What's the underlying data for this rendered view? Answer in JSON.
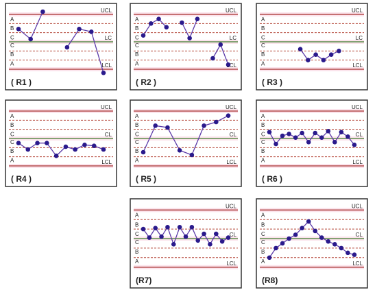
{
  "chart_data": [
    {
      "type": "line",
      "title": "( R1 )",
      "color": "#2a1a8c",
      "ylim": [
        -3.6,
        3.6
      ],
      "values": [
        1.4,
        0.3,
        3.3,
        null,
        -0.6,
        1.4,
        1.1,
        -3.4
      ],
      "yticks": [
        {
          "value": 3,
          "label": "UCL"
        },
        {
          "value": 2.5,
          "label": "A"
        },
        {
          "value": 1.5,
          "label": "B"
        },
        {
          "value": 0.5,
          "label": "C"
        },
        {
          "value": 0,
          "label": "LC"
        },
        {
          "value": -0.5,
          "label": "C"
        },
        {
          "value": -1.5,
          "label": "B"
        },
        {
          "value": -2.5,
          "label": "A"
        },
        {
          "value": -3,
          "label": "LCL"
        }
      ]
    },
    {
      "type": "line",
      "title": "( R2 )",
      "color": "#2a1a8c",
      "ylim": [
        -3.6,
        3.6
      ],
      "values": [
        0.7,
        2,
        2.5,
        1.6,
        null,
        2.1,
        0.4,
        2.5,
        null,
        -1.8,
        -0.3,
        -2.5
      ],
      "yticks": [
        {
          "value": 3,
          "label": "UCL"
        },
        {
          "value": 2.5,
          "label": "A"
        },
        {
          "value": 1.5,
          "label": "B"
        },
        {
          "value": 0.5,
          "label": "C"
        },
        {
          "value": 0,
          "label": "LC"
        },
        {
          "value": -0.5,
          "label": "C"
        },
        {
          "value": -1.5,
          "label": "B"
        },
        {
          "value": -2.5,
          "label": "A"
        },
        {
          "value": -3,
          "label": "LCL"
        }
      ]
    },
    {
      "type": "line",
      "title": "( R3 )",
      "color": "#2a1a8c",
      "ylim": [
        -3.6,
        3.6
      ],
      "values": [
        null,
        null,
        null,
        null,
        -0.8,
        -2,
        -1.4,
        -2,
        -1.4,
        -1,
        null,
        null
      ],
      "yticks": [
        {
          "value": 3,
          "label": "UCL"
        },
        {
          "value": 2.5,
          "label": "A"
        },
        {
          "value": 1.5,
          "label": "B"
        },
        {
          "value": 0.5,
          "label": "C"
        },
        {
          "value": 0,
          "label": "LC"
        },
        {
          "value": -0.5,
          "label": "C"
        },
        {
          "value": -1.5,
          "label": "B"
        },
        {
          "value": -2.5,
          "label": "A"
        },
        {
          "value": -3,
          "label": "LCL"
        }
      ]
    },
    {
      "type": "line",
      "title": "( R4 )",
      "color": "#2a1a8c",
      "ylim": [
        -3.6,
        3.6
      ],
      "values": [
        -0.5,
        -1.2,
        -0.5,
        -0.5,
        -1.9,
        -0.9,
        -1.2,
        -0.7,
        -0.8,
        -1.2
      ],
      "yticks": [
        {
          "value": 3,
          "label": "UCL"
        },
        {
          "value": 2.5,
          "label": "A"
        },
        {
          "value": 1.5,
          "label": "B"
        },
        {
          "value": 0.5,
          "label": "C"
        },
        {
          "value": 0,
          "label": "CL"
        },
        {
          "value": -0.5,
          "label": "C"
        },
        {
          "value": -1.5,
          "label": "B"
        },
        {
          "value": -2.5,
          "label": "A"
        },
        {
          "value": -3,
          "label": "LCL"
        }
      ]
    },
    {
      "type": "line",
      "title": "( R5 )",
      "color": "#2a1a8c",
      "ylim": [
        -3.6,
        3.6
      ],
      "values": [
        -1.5,
        1.4,
        1.2,
        -1.3,
        -1.8,
        1.4,
        1.8,
        2.5
      ],
      "yticks": [
        {
          "value": 3,
          "label": "UCL"
        },
        {
          "value": 2.5,
          "label": "A"
        },
        {
          "value": 1.5,
          "label": "B"
        },
        {
          "value": 0.5,
          "label": "C"
        },
        {
          "value": 0,
          "label": "CL"
        },
        {
          "value": -0.5,
          "label": "C"
        },
        {
          "value": -1.5,
          "label": "B"
        },
        {
          "value": -2.5,
          "label": "A"
        },
        {
          "value": -3,
          "label": "LCL"
        }
      ]
    },
    {
      "type": "line",
      "title": "( R6 )",
      "color": "#2a1a8c",
      "ylim": [
        -3.6,
        3.6
      ],
      "values": [
        0.7,
        -0.6,
        0.3,
        0.5,
        0.1,
        0.6,
        -0.4,
        0.6,
        0.1,
        0.8,
        -0.4,
        0.7,
        0.2,
        -0.7
      ],
      "yticks": [
        {
          "value": 3,
          "label": "UCL"
        },
        {
          "value": 2.5,
          "label": "A"
        },
        {
          "value": 1.5,
          "label": "B"
        },
        {
          "value": 0.5,
          "label": "C"
        },
        {
          "value": 0,
          "label": "CL"
        },
        {
          "value": -0.5,
          "label": "C"
        },
        {
          "value": -1.5,
          "label": "B"
        },
        {
          "value": -2.5,
          "label": "A"
        },
        {
          "value": -3,
          "label": "LCL"
        }
      ]
    },
    {
      "type": "line",
      "title": "(R7)",
      "color": "#2a1a8c",
      "ylim": [
        -3.6,
        3.6
      ],
      "values": [
        1,
        0.1,
        1.1,
        0.2,
        1.2,
        -0.6,
        1.2,
        0.2,
        1.2,
        -0.2,
        0.5,
        -0.6,
        0.5,
        -0.3,
        0.1
      ],
      "yticks": [
        {
          "value": 3,
          "label": "UCL"
        },
        {
          "value": 2.5,
          "label": "A"
        },
        {
          "value": 1.5,
          "label": "B"
        },
        {
          "value": 0.5,
          "label": "C"
        },
        {
          "value": 0,
          "label": "CL"
        },
        {
          "value": -0.5,
          "label": "C"
        },
        {
          "value": -1.5,
          "label": "B"
        },
        {
          "value": -2.5,
          "label": "A"
        },
        {
          "value": -3,
          "label": "LCL"
        }
      ]
    },
    {
      "type": "line",
      "title": "(R8)",
      "color": "#2a1a8c",
      "ylim": [
        -3.6,
        3.6
      ],
      "values": [
        -2,
        -1,
        -0.5,
        0,
        0.4,
        1.1,
        1.8,
        0.8,
        0.1,
        -0.3,
        -0.6,
        -1,
        -1.5,
        -1.7
      ],
      "yticks": [
        {
          "value": 3,
          "label": "UCL"
        },
        {
          "value": 2.5,
          "label": "A"
        },
        {
          "value": 1.5,
          "label": "B"
        },
        {
          "value": 0.5,
          "label": "C"
        },
        {
          "value": 0,
          "label": "CL"
        },
        {
          "value": -0.5,
          "label": "C"
        },
        {
          "value": -1.5,
          "label": "B"
        },
        {
          "value": -2.5,
          "label": "A"
        },
        {
          "value": -3,
          "label": "LCL"
        }
      ]
    }
  ]
}
